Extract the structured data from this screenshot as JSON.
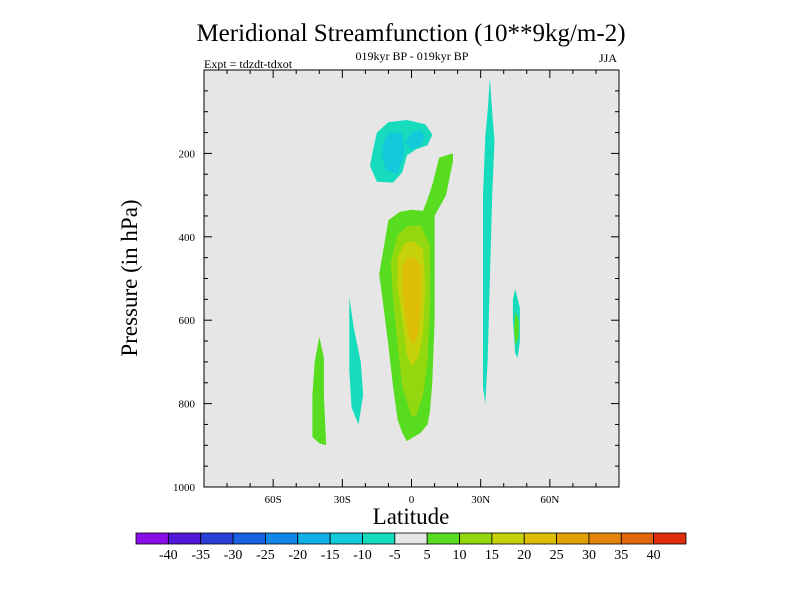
{
  "chart_data": {
    "type": "contour",
    "title": "Meridional Streamfunction (10**9kg/m-2)",
    "subtitle_left": "Expt = tdzdt-tdxot",
    "subtitle_center": "019kyr BP - 019kyr BP",
    "subtitle_right": "JJA",
    "xlabel": "Latitude",
    "ylabel": "Pressure (in hPa)",
    "xlim": [
      -90,
      90
    ],
    "ylim": [
      1000,
      0
    ],
    "x_ticks": [
      {
        "value": -60,
        "label": "60S"
      },
      {
        "value": -30,
        "label": "30S"
      },
      {
        "value": 0,
        "label": "0"
      },
      {
        "value": 30,
        "label": "30N"
      },
      {
        "value": 60,
        "label": "60N"
      }
    ],
    "y_ticks": [
      {
        "value": 200,
        "label": "200"
      },
      {
        "value": 400,
        "label": "400"
      },
      {
        "value": 600,
        "label": "600"
      },
      {
        "value": 800,
        "label": "800"
      },
      {
        "value": 1000,
        "label": "1000"
      }
    ],
    "background_color": "#e6e6e6",
    "colorbar": {
      "colors": [
        "#8a0ee8",
        "#5118d8",
        "#2b3fd9",
        "#1762e0",
        "#1187e8",
        "#10b0e8",
        "#12cad9",
        "#16dcbd",
        "#e6e6e6",
        "#57dc20",
        "#93d80f",
        "#c5d209",
        "#ddbd05",
        "#e2a206",
        "#e2850a",
        "#e2660b",
        "#de2e0e"
      ],
      "labels": [
        "-40",
        "-35",
        "-30",
        "-25",
        "-20",
        "-15",
        "-10",
        "-5",
        "5",
        "10",
        "15",
        "20",
        "25",
        "30",
        "35",
        "40"
      ]
    },
    "contour_regions": [
      {
        "level": "-10 to -5",
        "color": "#16dcbd",
        "points": [
          [
            -17,
            200
          ],
          [
            -15,
            150
          ],
          [
            -10,
            125
          ],
          [
            -2,
            120
          ],
          [
            6,
            130
          ],
          [
            9,
            155
          ],
          [
            7,
            180
          ],
          [
            2,
            190
          ],
          [
            -2,
            205
          ],
          [
            -4,
            245
          ],
          [
            -8,
            270
          ],
          [
            -15,
            268
          ],
          [
            -18,
            230
          ]
        ]
      },
      {
        "level": "-15 to -10",
        "color": "#12cad9",
        "points": [
          [
            -12,
            170
          ],
          [
            -10,
            150
          ],
          [
            -4,
            150
          ],
          [
            -3,
            200
          ],
          [
            -6,
            250
          ],
          [
            -11,
            240
          ],
          [
            -13,
            205
          ]
        ]
      },
      {
        "level": "-15 to -10",
        "color": "#12cad9",
        "points": [
          [
            -3,
            175
          ],
          [
            0,
            150
          ],
          [
            4,
            145
          ],
          [
            6,
            160
          ],
          [
            4,
            182
          ],
          [
            0,
            190
          ]
        ]
      },
      {
        "level": "5 to 10",
        "color": "#57dc20",
        "points": [
          [
            -13,
            530
          ],
          [
            -14,
            490
          ],
          [
            -10,
            360
          ],
          [
            -5,
            340
          ],
          [
            0,
            335
          ],
          [
            5,
            338
          ],
          [
            7,
            310
          ],
          [
            9,
            275
          ],
          [
            12,
            210
          ],
          [
            18,
            200
          ],
          [
            18,
            218
          ],
          [
            15,
            300
          ],
          [
            10,
            350
          ],
          [
            10,
            420
          ],
          [
            10,
            600
          ],
          [
            9,
            750
          ],
          [
            8,
            820
          ],
          [
            7,
            850
          ],
          [
            4,
            870
          ],
          [
            -2,
            890
          ],
          [
            -4,
            870
          ],
          [
            -6,
            840
          ],
          [
            -8,
            760
          ],
          [
            -10,
            660
          ]
        ]
      },
      {
        "level": "10 to 15",
        "color": "#93d80f",
        "points": [
          [
            -8,
            550
          ],
          [
            -9,
            460
          ],
          [
            -6,
            395
          ],
          [
            -2,
            375
          ],
          [
            4,
            372
          ],
          [
            8,
            420
          ],
          [
            8,
            560
          ],
          [
            7,
            700
          ],
          [
            5,
            780
          ],
          [
            2,
            830
          ],
          [
            0,
            830
          ],
          [
            -4,
            760
          ],
          [
            -6,
            660
          ]
        ]
      },
      {
        "level": "15 to 20",
        "color": "#c5d209",
        "points": [
          [
            -6,
            520
          ],
          [
            -6,
            450
          ],
          [
            -3,
            415
          ],
          [
            1,
            410
          ],
          [
            5,
            430
          ],
          [
            6,
            520
          ],
          [
            5,
            630
          ],
          [
            3,
            690
          ],
          [
            0,
            710
          ],
          [
            -2,
            680
          ],
          [
            -4,
            600
          ]
        ]
      },
      {
        "level": "20 to 25",
        "color": "#ddbd05",
        "points": [
          [
            -4,
            520
          ],
          [
            -4,
            470
          ],
          [
            -2,
            450
          ],
          [
            1,
            450
          ],
          [
            4,
            470
          ],
          [
            4,
            560
          ],
          [
            3,
            630
          ],
          [
            1,
            660
          ],
          [
            -1,
            640
          ],
          [
            -3,
            580
          ]
        ]
      },
      {
        "level": "5 to 10",
        "color": "#57dc20",
        "points": [
          [
            -40,
            640
          ],
          [
            -38,
            690
          ],
          [
            -38,
            780
          ],
          [
            -37,
            900
          ],
          [
            -40,
            895
          ],
          [
            -43,
            880
          ],
          [
            -43,
            780
          ],
          [
            -42,
            700
          ]
        ]
      },
      {
        "level": "-10 to -5",
        "color": "#16dcbd",
        "points": [
          [
            -27,
            545
          ],
          [
            -25,
            620
          ],
          [
            -22,
            700
          ],
          [
            -21,
            780
          ],
          [
            -23,
            850
          ],
          [
            -26,
            810
          ],
          [
            -27,
            720
          ]
        ]
      },
      {
        "level": "-10 to -5",
        "color": "#16dcbd",
        "points": [
          [
            34,
            20
          ],
          [
            35,
            100
          ],
          [
            36,
            170
          ],
          [
            35,
            300
          ],
          [
            34,
            500
          ],
          [
            33,
            700
          ],
          [
            32,
            800
          ],
          [
            31,
            760
          ],
          [
            31,
            500
          ],
          [
            31,
            300
          ],
          [
            32,
            160
          ],
          [
            33,
            100
          ]
        ]
      },
      {
        "level": "-10 to -5",
        "color": "#16dcbd",
        "points": [
          [
            45,
            525
          ],
          [
            47,
            570
          ],
          [
            47,
            650
          ],
          [
            46,
            690
          ],
          [
            45,
            680
          ],
          [
            44,
            600
          ],
          [
            44,
            550
          ]
        ]
      },
      {
        "level": "5 to 10",
        "color": "#57dc20",
        "points": [
          [
            45,
            580
          ],
          [
            46.5,
            600
          ],
          [
            46.5,
            640
          ],
          [
            45,
            660
          ],
          [
            44.5,
            620
          ]
        ]
      }
    ]
  }
}
